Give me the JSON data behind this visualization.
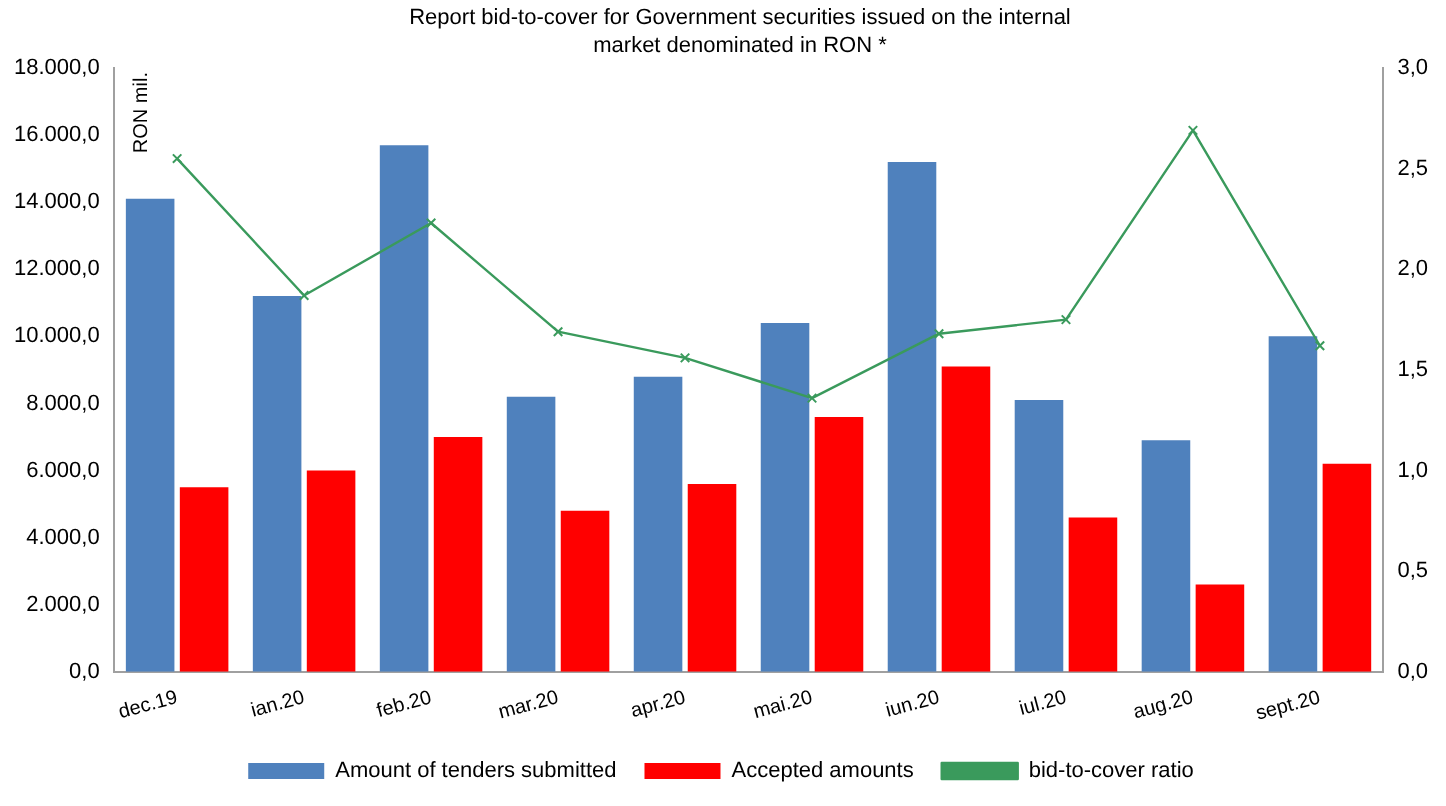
{
  "chart_data": {
    "type": "bar",
    "title": "Report bid-to-cover for Government securities issued on the internal market denominated in RON *",
    "ylabel": "RON mil.",
    "categories": [
      "dec.19",
      "ian.20",
      "feb.20",
      "mar.20",
      "apr.20",
      "mai.20",
      "iun.20",
      "iul.20",
      "aug.20",
      "sept.20"
    ],
    "series": [
      {
        "name": "Amount of tenders submitted",
        "color": "#4f81bd",
        "values": [
          14100,
          11200,
          15700,
          8200,
          8800,
          10400,
          15200,
          8100,
          6900,
          10000
        ]
      },
      {
        "name": "Accepted amounts",
        "color": "#ff0000",
        "values": [
          5500,
          6000,
          7000,
          4800,
          5600,
          7600,
          9100,
          4600,
          2600,
          6200
        ]
      },
      {
        "name": "bid-to-cover ratio",
        "type": "line",
        "axis": "y2",
        "color": "#3a9a5c",
        "marker": "cross",
        "values": [
          2.55,
          1.87,
          2.23,
          1.69,
          1.56,
          1.36,
          1.68,
          1.75,
          2.69,
          1.62
        ]
      }
    ],
    "ylim": [
      0,
      18000
    ],
    "yticks": [
      {
        "value": 0,
        "label": "0,0"
      },
      {
        "value": 2000,
        "label": "2.000,0"
      },
      {
        "value": 4000,
        "label": "4.000,0"
      },
      {
        "value": 6000,
        "label": "6.000,0"
      },
      {
        "value": 8000,
        "label": "8.000,0"
      },
      {
        "value": 10000,
        "label": "10.000,0"
      },
      {
        "value": 12000,
        "label": "12.000,0"
      },
      {
        "value": 14000,
        "label": "14.000,0"
      },
      {
        "value": 16000,
        "label": "16.000,0"
      },
      {
        "value": 18000,
        "label": "18.000,0"
      }
    ],
    "y2lim": [
      0,
      3
    ],
    "y2ticks": [
      {
        "value": 0,
        "label": "0,0"
      },
      {
        "value": 0.5,
        "label": "0,5"
      },
      {
        "value": 1,
        "label": "1,0"
      },
      {
        "value": 1.5,
        "label": "1,5"
      },
      {
        "value": 2,
        "label": "2,0"
      },
      {
        "value": 2.5,
        "label": "2,5"
      },
      {
        "value": 3,
        "label": "3,0"
      }
    ],
    "grid": false,
    "legend": "bottom"
  }
}
